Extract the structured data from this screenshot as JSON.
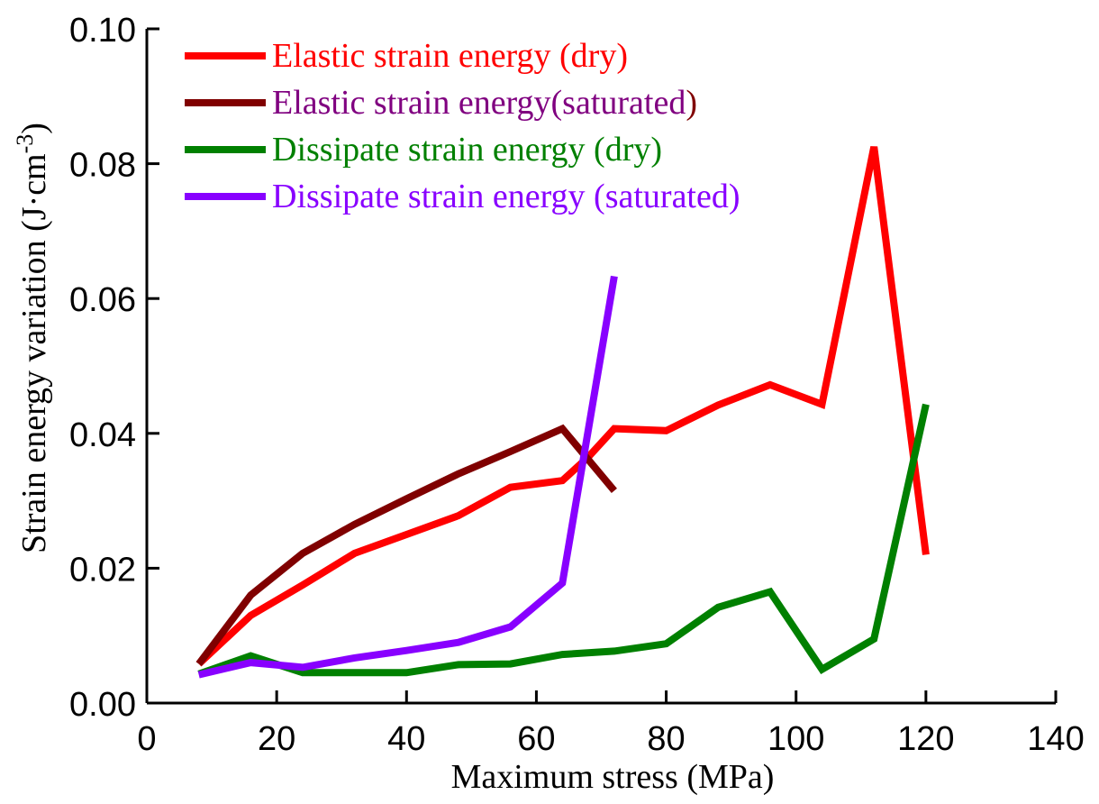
{
  "chart_data": {
    "type": "line",
    "title": "",
    "xlabel": "Maximum stress (MPa)",
    "ylabel": "Strain energy variation (J·cm⁻³)",
    "ylabel_main": "Strain energy variation (J·cm",
    "ylabel_sup": "-3",
    "ylabel_end": ")",
    "xlim": [
      0,
      140
    ],
    "ylim": [
      0,
      0.1
    ],
    "xticks": [
      0,
      20,
      40,
      60,
      80,
      100,
      120,
      140
    ],
    "yticks": [
      0.0,
      0.02,
      0.04,
      0.06,
      0.08,
      0.1
    ],
    "xtick_labels": [
      "0",
      "20",
      "40",
      "60",
      "80",
      "100",
      "120",
      "140"
    ],
    "ytick_labels": [
      "0.00",
      "0.02",
      "0.04",
      "0.06",
      "0.08",
      "0.10"
    ],
    "grid": false,
    "legend_position": "top-left",
    "series": [
      {
        "name": "Elastic strain energy (dry)",
        "color": "#ff0000",
        "x": [
          8,
          16,
          24,
          32,
          40,
          48,
          56,
          64,
          68,
          72,
          80,
          88,
          96,
          104,
          112,
          120
        ],
        "y": [
          0.0058,
          0.013,
          0.0175,
          0.0222,
          0.025,
          0.0278,
          0.032,
          0.033,
          0.0365,
          0.0407,
          0.0404,
          0.0442,
          0.0472,
          0.0443,
          0.0825,
          0.022
        ]
      },
      {
        "name": "Elastic strain energy(saturated)",
        "color": "#800000",
        "x": [
          8,
          16,
          24,
          32,
          40,
          48,
          56,
          64,
          72
        ],
        "y": [
          0.0058,
          0.016,
          0.0222,
          0.0265,
          0.0303,
          0.034,
          0.0373,
          0.0407,
          0.0315
        ]
      },
      {
        "name": "Dissipate strain energy (dry)",
        "color": "#008000",
        "x": [
          8,
          16,
          24,
          32,
          40,
          48,
          56,
          64,
          72,
          80,
          88,
          96,
          104,
          112,
          120
        ],
        "y": [
          0.0043,
          0.007,
          0.0045,
          0.0045,
          0.0045,
          0.0057,
          0.0058,
          0.0072,
          0.0077,
          0.0088,
          0.0142,
          0.0165,
          0.005,
          0.0095,
          0.0443
        ]
      },
      {
        "name": "Dissipate strain energy (saturated)",
        "color": "#8800ff",
        "x": [
          8,
          16,
          24,
          32,
          40,
          48,
          56,
          64,
          72
        ],
        "y": [
          0.0042,
          0.006,
          0.0053,
          0.0067,
          0.0078,
          0.009,
          0.0113,
          0.0178,
          0.0633
        ]
      }
    ]
  },
  "legend": [
    {
      "segments": [
        {
          "text": "Elastic strain energy ",
          "color": "#ff0000"
        },
        {
          "text": "(dry)",
          "color": "#ff0000"
        }
      ]
    },
    {
      "segments": [
        {
          "text": "Elastic strain energy(saturated",
          "color": "#800080"
        },
        {
          "text": ")",
          "color": "#800000"
        }
      ]
    },
    {
      "segments": [
        {
          "text": "Dissipate strain energy (dry)",
          "color": "#008000"
        }
      ]
    },
    {
      "segments": [
        {
          "text": "Dissipate strain energy (saturated)",
          "color": "#8800ff"
        }
      ]
    }
  ]
}
